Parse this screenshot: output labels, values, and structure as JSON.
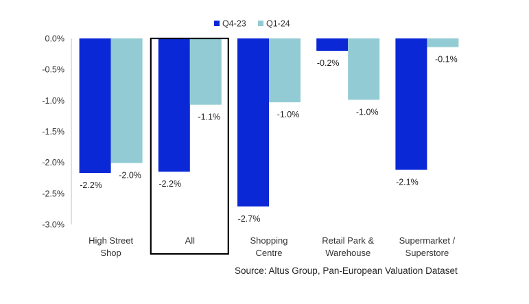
{
  "chart_data": {
    "type": "bar",
    "title": "",
    "xlabel": "",
    "ylabel": "",
    "ylim": [
      -3.0,
      0.0
    ],
    "y_ticks": [
      "0.0%",
      "-0.5%",
      "-1.0%",
      "-1.5%",
      "-2.0%",
      "-2.5%",
      "-3.0%"
    ],
    "y_tick_values": [
      0.0,
      -0.5,
      -1.0,
      -1.5,
      -2.0,
      -2.5,
      -3.0
    ],
    "categories": [
      [
        "High Street",
        "Shop"
      ],
      [
        "All"
      ],
      [
        "Shopping",
        "Centre"
      ],
      [
        "Retail Park &",
        "Warehouse"
      ],
      [
        "Supermarket /",
        "Superstore"
      ]
    ],
    "highlighted_category_index": 1,
    "series": [
      {
        "name": "Q4-23",
        "color": "#0a28d6",
        "values": [
          -2.17,
          -2.15,
          -2.71,
          -0.2,
          -2.12
        ],
        "labels": [
          "-2.2%",
          "-2.2%",
          "-2.7%",
          "-0.2%",
          "-2.1%"
        ]
      },
      {
        "name": "Q1-24",
        "color": "#92cbd3",
        "values": [
          -2.01,
          -1.07,
          -1.03,
          -0.99,
          -0.14
        ],
        "labels": [
          "-2.0%",
          "-1.1%",
          "-1.0%",
          "-1.0%",
          "-0.1%"
        ]
      }
    ],
    "legend_position": "top-center"
  },
  "source_text": "Source:  Altus Group, Pan-European Valuation Dataset"
}
